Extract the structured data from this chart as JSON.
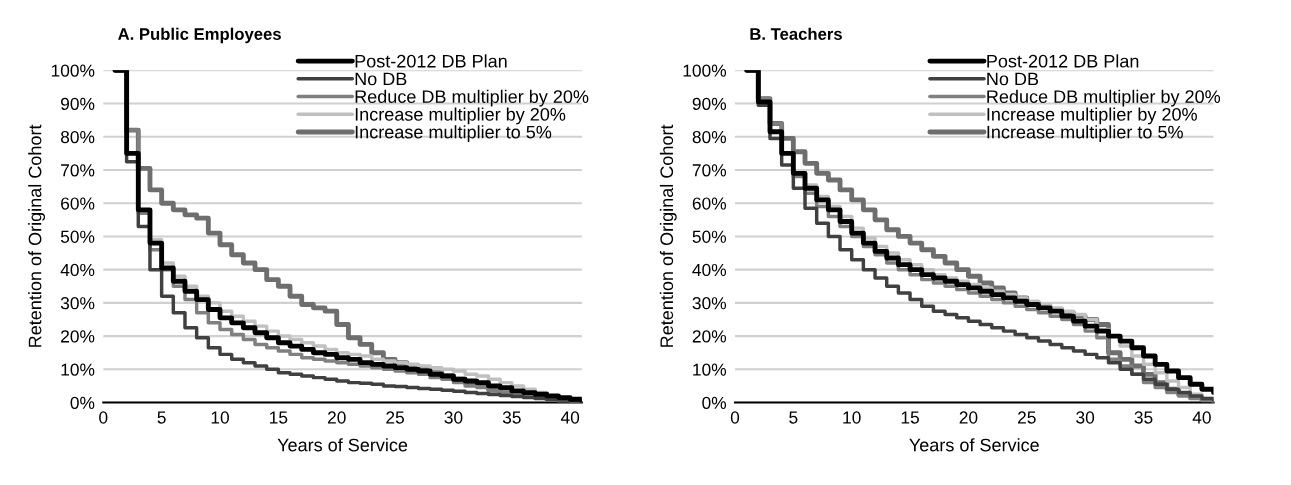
{
  "chart_data": [
    {
      "type": "step",
      "title": "A. Public Employees",
      "xlabel": "Years of Service",
      "ylabel": "Retention of Original Cohort",
      "x": [
        1,
        2,
        3,
        4,
        5,
        6,
        7,
        8,
        9,
        10,
        11,
        12,
        13,
        14,
        15,
        16,
        17,
        18,
        19,
        20,
        21,
        22,
        23,
        24,
        25,
        26,
        27,
        28,
        29,
        30,
        31,
        32,
        33,
        34,
        35,
        36,
        37,
        38,
        39,
        40,
        41
      ],
      "xlim": [
        0,
        41
      ],
      "xticks": [
        0,
        5,
        10,
        15,
        20,
        25,
        30,
        35,
        40
      ],
      "ylim": [
        0,
        100
      ],
      "yticks": [
        {
          "value": 0,
          "label": "0%"
        },
        {
          "value": 10,
          "label": "10%"
        },
        {
          "value": 20,
          "label": "20%"
        },
        {
          "value": 30,
          "label": "30%"
        },
        {
          "value": 40,
          "label": "40%"
        },
        {
          "value": 50,
          "label": "50%"
        },
        {
          "value": 60,
          "label": "60%"
        },
        {
          "value": 70,
          "label": "70%"
        },
        {
          "value": 80,
          "label": "80%"
        },
        {
          "value": 90,
          "label": "90%"
        },
        {
          "value": 100,
          "label": "100%"
        }
      ],
      "grid": "y",
      "legend": "top right",
      "series": [
        {
          "name": "Post-2012 DB Plan",
          "color": "#000000",
          "values": [
            100,
            75,
            58,
            48,
            40.5,
            36.5,
            33.5,
            31,
            28,
            25.5,
            24,
            22.5,
            21,
            19.5,
            18,
            17,
            16,
            15,
            14.5,
            13.5,
            13,
            12,
            11.5,
            11,
            10.5,
            10,
            9.5,
            8.5,
            8,
            7,
            6.5,
            6,
            5,
            4.5,
            3.5,
            3,
            2.5,
            2,
            1.5,
            1,
            0.5
          ]
        },
        {
          "name": "No DB",
          "color": "#404040",
          "values": [
            100,
            72.5,
            53,
            40,
            32,
            27,
            22.5,
            19.5,
            16.5,
            14.5,
            13,
            12,
            11,
            10,
            9,
            8.5,
            8,
            7.5,
            7,
            6.5,
            6,
            5.8,
            5.5,
            5,
            4.8,
            4.5,
            4.2,
            4,
            3.7,
            3.4,
            3,
            2.7,
            2.4,
            2.1,
            1.8,
            1.5,
            1.2,
            1,
            0.8,
            0.5,
            0.3
          ]
        },
        {
          "name": "Reduce DB multiplier by 20%",
          "color": "#808080",
          "values": [
            100,
            82,
            57,
            46,
            40,
            35,
            31,
            27,
            24,
            22,
            20.5,
            19,
            17.5,
            16.5,
            15.5,
            14.5,
            13.5,
            13,
            12.5,
            12,
            11.5,
            11,
            10.5,
            10,
            9.5,
            9,
            8.5,
            7.5,
            7,
            6,
            5,
            4.5,
            3.5,
            3,
            2.5,
            2,
            1.5,
            1,
            0.7,
            0.4,
            0.2
          ]
        },
        {
          "name": "Increase multiplier by 20%",
          "color": "#c0c0c0",
          "values": [
            100,
            75,
            58,
            49,
            42,
            38,
            35,
            32,
            30,
            27.5,
            26,
            24.5,
            23,
            21.5,
            20,
            19,
            18,
            17,
            16,
            15,
            14.5,
            14,
            13,
            12.5,
            12,
            11.5,
            11,
            10.5,
            10,
            9.5,
            8.5,
            8,
            7,
            6,
            5,
            4,
            3,
            2,
            1.2,
            0.6,
            0.3
          ]
        },
        {
          "name": "Increase multiplier to 5%",
          "color": "#6e6e6e",
          "values": [
            100,
            82,
            70.5,
            64,
            60,
            58,
            56.5,
            55.5,
            51,
            47.5,
            44.5,
            42,
            40,
            37,
            35,
            32,
            29.5,
            28.5,
            27.5,
            23.5,
            19.5,
            17.5,
            15,
            13,
            12,
            11,
            10,
            9,
            8,
            7,
            6,
            5,
            4,
            3,
            2.5,
            2,
            1.5,
            1,
            0.6,
            0.3,
            0.2
          ]
        }
      ]
    },
    {
      "type": "step",
      "title": "B. Teachers",
      "xlabel": "Years of Service",
      "ylabel": "Retention of Original Cohort",
      "x": [
        1,
        2,
        3,
        4,
        5,
        6,
        7,
        8,
        9,
        10,
        11,
        12,
        13,
        14,
        15,
        16,
        17,
        18,
        19,
        20,
        21,
        22,
        23,
        24,
        25,
        26,
        27,
        28,
        29,
        30,
        31,
        32,
        33,
        34,
        35,
        36,
        37,
        38,
        39,
        40,
        41
      ],
      "xlim": [
        0,
        41
      ],
      "xticks": [
        0,
        5,
        10,
        15,
        20,
        25,
        30,
        35,
        40
      ],
      "ylim": [
        0,
        100
      ],
      "yticks": [
        {
          "value": 0,
          "label": "0%"
        },
        {
          "value": 10,
          "label": "10%"
        },
        {
          "value": 20,
          "label": "20%"
        },
        {
          "value": 30,
          "label": "30%"
        },
        {
          "value": 40,
          "label": "40%"
        },
        {
          "value": 50,
          "label": "50%"
        },
        {
          "value": 60,
          "label": "60%"
        },
        {
          "value": 70,
          "label": "70%"
        },
        {
          "value": 80,
          "label": "80%"
        },
        {
          "value": 90,
          "label": "90%"
        },
        {
          "value": 100,
          "label": "100%"
        }
      ],
      "grid": "y",
      "legend": "top right",
      "series": [
        {
          "name": "Post-2012 DB Plan",
          "color": "#000000",
          "values": [
            100,
            90.5,
            81.5,
            75,
            69,
            64.5,
            61,
            58,
            54.5,
            51,
            48,
            45.5,
            43.5,
            41.5,
            40,
            38.5,
            37.5,
            36.5,
            35.5,
            34.5,
            33.5,
            32.5,
            31.5,
            30.5,
            29.5,
            28.5,
            27.5,
            26,
            24.5,
            23,
            21.5,
            20,
            18.5,
            16.5,
            14,
            11.5,
            9.5,
            7.5,
            5.5,
            4,
            3
          ]
        },
        {
          "name": "No DB",
          "color": "#404040",
          "values": [
            100,
            89.5,
            79.5,
            71.5,
            64.5,
            58.5,
            54,
            50,
            46,
            43,
            40,
            37.5,
            35,
            33,
            31,
            29,
            27.5,
            26.5,
            25.5,
            24.5,
            23.5,
            22.5,
            21.5,
            20.5,
            19.5,
            18.5,
            17.5,
            16.5,
            15.5,
            14.5,
            13.5,
            12,
            10,
            8.5,
            7,
            5.5,
            4,
            3,
            2,
            1.2,
            0.8
          ]
        },
        {
          "name": "Reduce DB multiplier by 20%",
          "color": "#808080",
          "values": [
            100,
            91.5,
            84,
            75,
            68,
            63,
            59,
            56,
            53,
            50,
            47,
            44.5,
            42,
            40,
            38.5,
            37,
            36,
            35,
            34,
            33,
            32,
            31,
            30,
            29,
            28,
            27,
            26,
            25,
            23.5,
            21.5,
            19.5,
            13,
            11,
            8.5,
            6,
            4.5,
            3,
            2,
            1.2,
            0.6,
            0.3
          ]
        },
        {
          "name": "Increase multiplier by 20%",
          "color": "#c0c0c0",
          "values": [
            100,
            90.5,
            81.5,
            75,
            69,
            65.5,
            62,
            59,
            56,
            52.5,
            49.5,
            47,
            45,
            43,
            41.5,
            40,
            38.5,
            37.5,
            36.5,
            35.5,
            34.5,
            33.5,
            32.5,
            31.5,
            30.5,
            29.5,
            28.5,
            27.5,
            26.5,
            25,
            22,
            20,
            17,
            14,
            11.5,
            9,
            6.5,
            4.5,
            2.5,
            1.2,
            0.6
          ]
        },
        {
          "name": "Increase multiplier to 5%",
          "color": "#6e6e6e",
          "values": [
            100,
            91.5,
            84,
            79.5,
            75.5,
            72,
            69,
            67,
            64,
            61,
            58,
            55,
            52,
            50,
            48,
            46,
            44,
            42,
            40,
            38,
            36,
            34.5,
            33,
            31.5,
            30,
            29,
            28,
            27,
            26,
            25,
            23.5,
            15,
            13,
            11,
            8.5,
            6,
            4,
            2.5,
            1.5,
            0.8,
            0.4
          ]
        }
      ]
    }
  ]
}
